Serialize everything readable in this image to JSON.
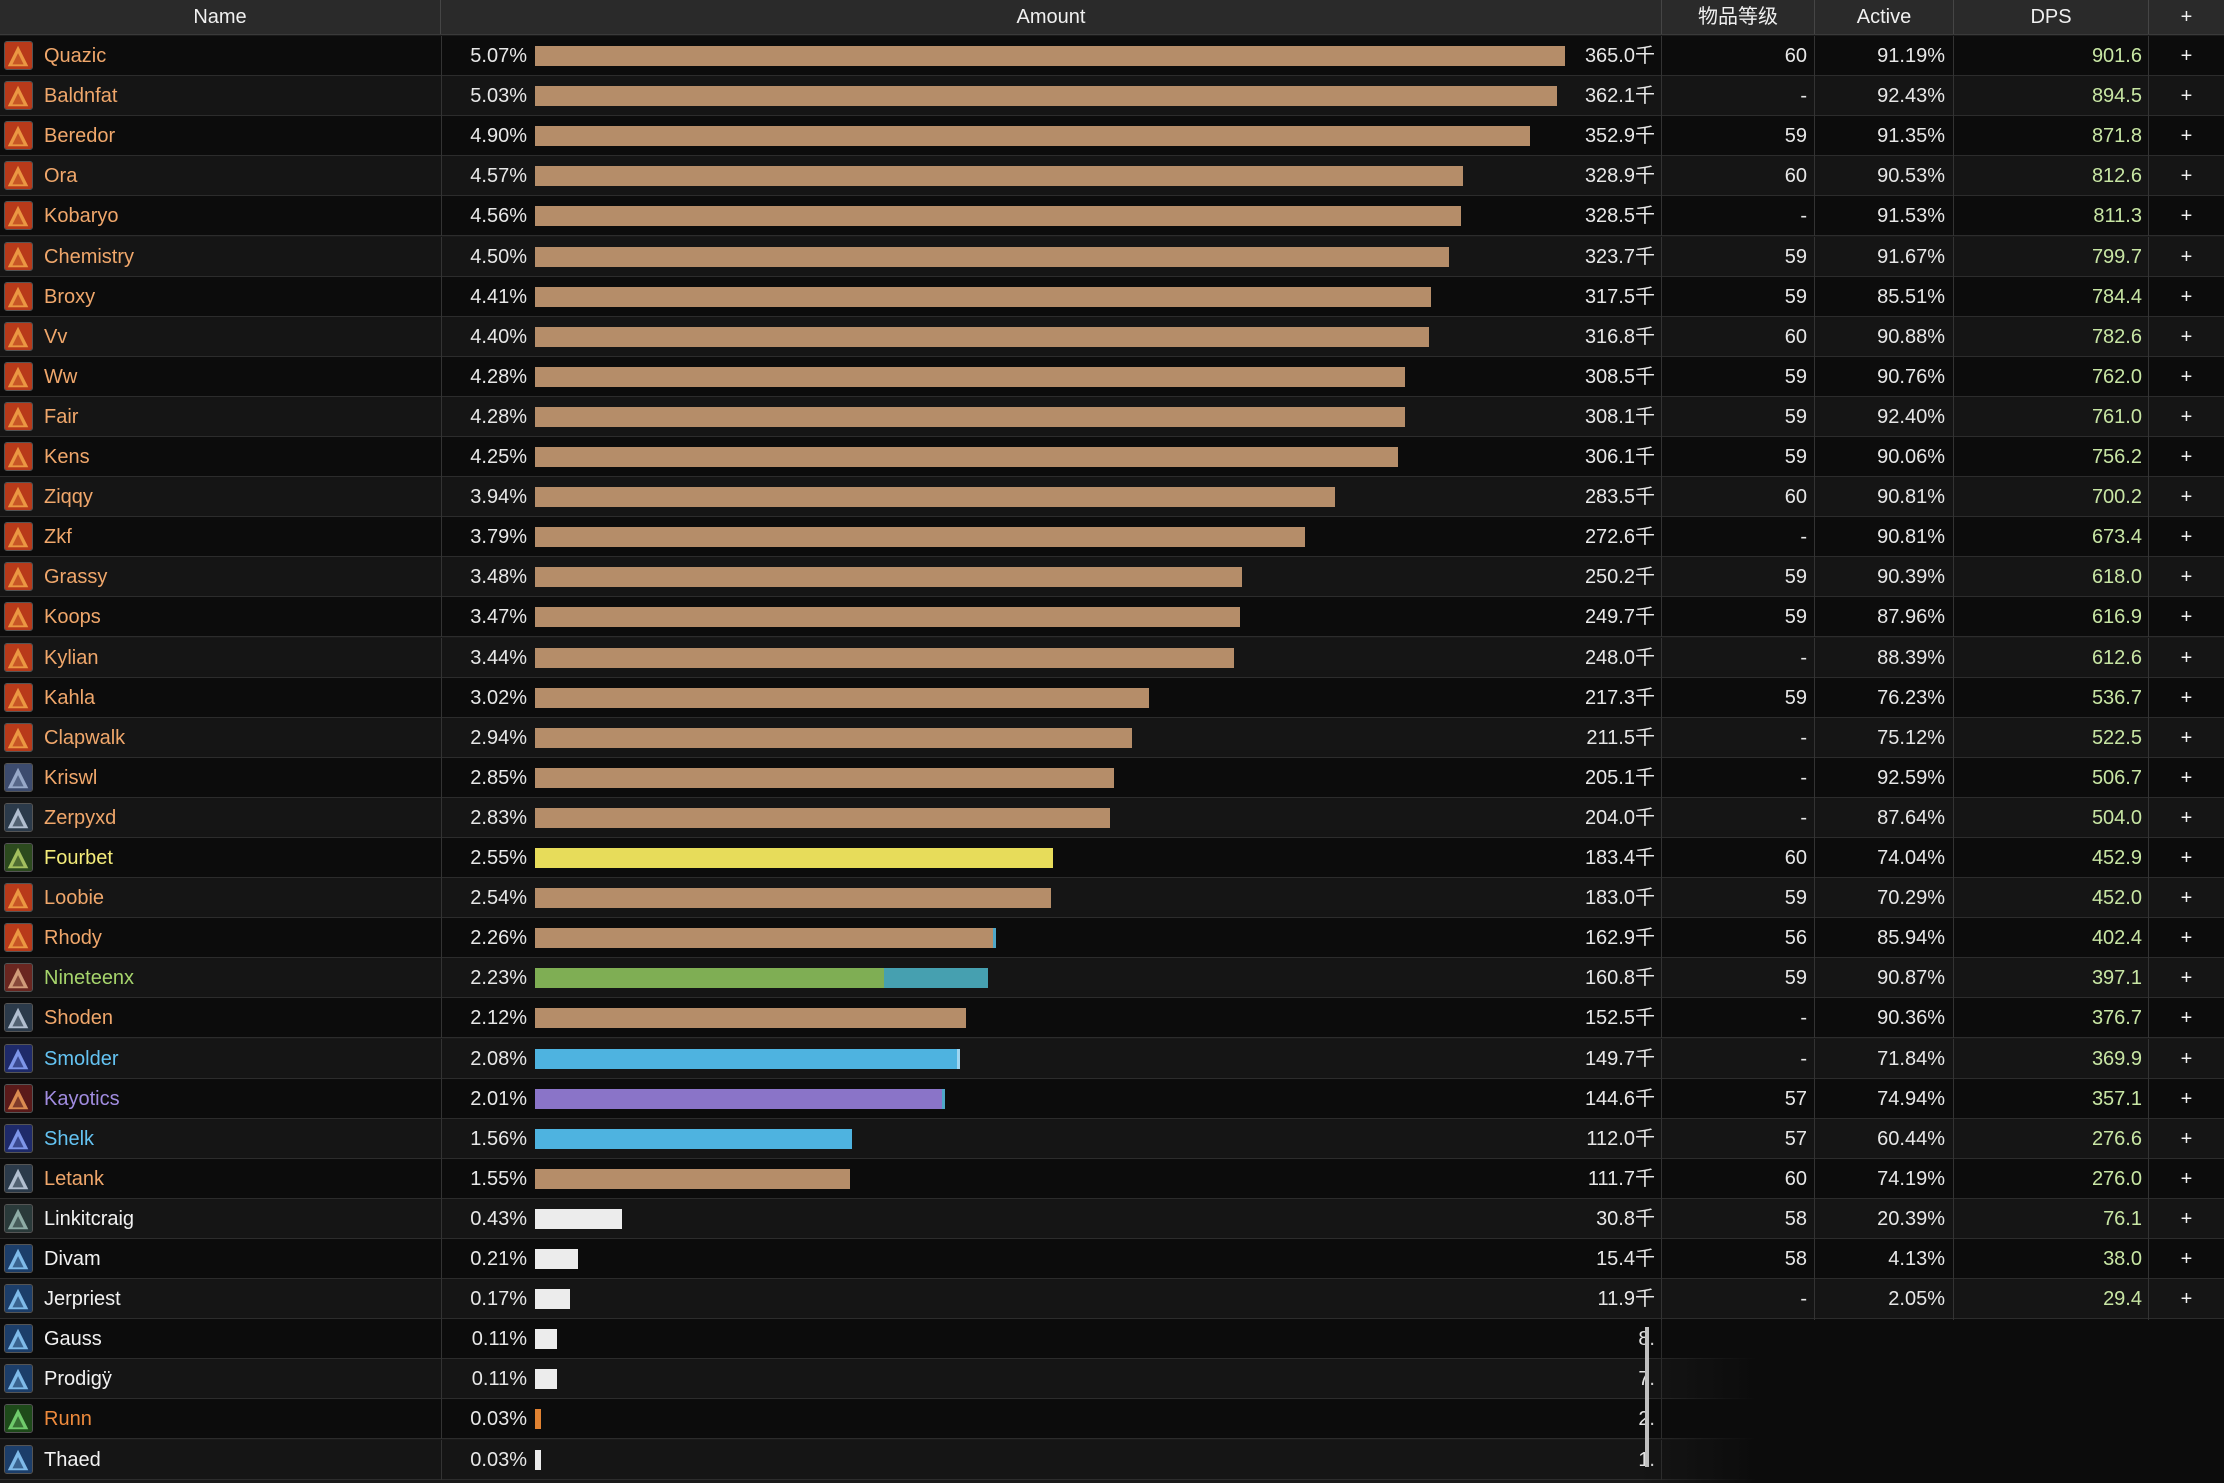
{
  "header": {
    "name": "Name",
    "amount": "Amount",
    "ilvl": "物品等级",
    "active": "Active",
    "dps": "DPS",
    "plus": "+"
  },
  "rows": [
    {
      "name": "Quazic",
      "pct": "5.07%",
      "amount": "365.0千",
      "ilvl": "60",
      "active": "91.19%",
      "dps": "901.6",
      "plus": "+",
      "bar": 5.07,
      "barColor": "#b58d69",
      "nameColor": "#f0a76b",
      "icon": "fire-class-icon"
    },
    {
      "name": "Baldnfat",
      "pct": "5.03%",
      "amount": "362.1千",
      "ilvl": "-",
      "active": "92.43%",
      "dps": "894.5",
      "plus": "+",
      "bar": 5.03,
      "barColor": "#b58d69",
      "nameColor": "#f0a76b",
      "icon": "fire-class-icon"
    },
    {
      "name": "Beredor",
      "pct": "4.90%",
      "amount": "352.9千",
      "ilvl": "59",
      "active": "91.35%",
      "dps": "871.8",
      "plus": "+",
      "bar": 4.9,
      "barColor": "#b58d69",
      "nameColor": "#f0a76b",
      "icon": "fire-class-icon"
    },
    {
      "name": "Ora",
      "pct": "4.57%",
      "amount": "328.9千",
      "ilvl": "60",
      "active": "90.53%",
      "dps": "812.6",
      "plus": "+",
      "bar": 4.57,
      "barColor": "#b58d69",
      "nameColor": "#f0a76b",
      "icon": "fire-class-icon"
    },
    {
      "name": "Kobaryo",
      "pct": "4.56%",
      "amount": "328.5千",
      "ilvl": "-",
      "active": "91.53%",
      "dps": "811.3",
      "plus": "+",
      "bar": 4.56,
      "barColor": "#b58d69",
      "nameColor": "#f0a76b",
      "icon": "fire-class-icon"
    },
    {
      "name": "Chemistry",
      "pct": "4.50%",
      "amount": "323.7千",
      "ilvl": "59",
      "active": "91.67%",
      "dps": "799.7",
      "plus": "+",
      "bar": 4.5,
      "barColor": "#b58d69",
      "nameColor": "#f0a76b",
      "icon": "fire-class-icon"
    },
    {
      "name": "Broxy",
      "pct": "4.41%",
      "amount": "317.5千",
      "ilvl": "59",
      "active": "85.51%",
      "dps": "784.4",
      "plus": "+",
      "bar": 4.41,
      "barColor": "#b58d69",
      "nameColor": "#f0a76b",
      "icon": "fire-class-icon"
    },
    {
      "name": "Vv",
      "pct": "4.40%",
      "amount": "316.8千",
      "ilvl": "60",
      "active": "90.88%",
      "dps": "782.6",
      "plus": "+",
      "bar": 4.4,
      "barColor": "#b58d69",
      "nameColor": "#f0a76b",
      "icon": "fire-class-icon"
    },
    {
      "name": "Ww",
      "pct": "4.28%",
      "amount": "308.5千",
      "ilvl": "59",
      "active": "90.76%",
      "dps": "762.0",
      "plus": "+",
      "bar": 4.28,
      "barColor": "#b58d69",
      "nameColor": "#f0a76b",
      "icon": "fire-class-icon"
    },
    {
      "name": "Fair",
      "pct": "4.28%",
      "amount": "308.1千",
      "ilvl": "59",
      "active": "92.40%",
      "dps": "761.0",
      "plus": "+",
      "bar": 4.28,
      "barColor": "#b58d69",
      "nameColor": "#f0a76b",
      "icon": "fire-class-icon"
    },
    {
      "name": "Kens",
      "pct": "4.25%",
      "amount": "306.1千",
      "ilvl": "59",
      "active": "90.06%",
      "dps": "756.2",
      "plus": "+",
      "bar": 4.25,
      "barColor": "#b58d69",
      "nameColor": "#f0a76b",
      "icon": "fire-class-icon"
    },
    {
      "name": "Ziqqy",
      "pct": "3.94%",
      "amount": "283.5千",
      "ilvl": "60",
      "active": "90.81%",
      "dps": "700.2",
      "plus": "+",
      "bar": 3.94,
      "barColor": "#b58d69",
      "nameColor": "#f0a76b",
      "icon": "fire-class-icon"
    },
    {
      "name": "Zkf",
      "pct": "3.79%",
      "amount": "272.6千",
      "ilvl": "-",
      "active": "90.81%",
      "dps": "673.4",
      "plus": "+",
      "bar": 3.79,
      "barColor": "#b58d69",
      "nameColor": "#f0a76b",
      "icon": "fire-class-icon"
    },
    {
      "name": "Grassy",
      "pct": "3.48%",
      "amount": "250.2千",
      "ilvl": "59",
      "active": "90.39%",
      "dps": "618.0",
      "plus": "+",
      "bar": 3.48,
      "barColor": "#b58d69",
      "nameColor": "#f0a76b",
      "icon": "fire-class-icon"
    },
    {
      "name": "Koops",
      "pct": "3.47%",
      "amount": "249.7千",
      "ilvl": "59",
      "active": "87.96%",
      "dps": "616.9",
      "plus": "+",
      "bar": 3.47,
      "barColor": "#b58d69",
      "nameColor": "#f0a76b",
      "icon": "fire-class-icon"
    },
    {
      "name": "Kylian",
      "pct": "3.44%",
      "amount": "248.0千",
      "ilvl": "-",
      "active": "88.39%",
      "dps": "612.6",
      "plus": "+",
      "bar": 3.44,
      "barColor": "#b58d69",
      "nameColor": "#f0a76b",
      "icon": "fire-class-icon"
    },
    {
      "name": "Kahla",
      "pct": "3.02%",
      "amount": "217.3千",
      "ilvl": "59",
      "active": "76.23%",
      "dps": "536.7",
      "plus": "+",
      "bar": 3.02,
      "barColor": "#b58d69",
      "nameColor": "#f0a76b",
      "icon": "fire-class-icon"
    },
    {
      "name": "Clapwalk",
      "pct": "2.94%",
      "amount": "211.5千",
      "ilvl": "-",
      "active": "75.12%",
      "dps": "522.5",
      "plus": "+",
      "bar": 2.94,
      "barColor": "#b58d69",
      "nameColor": "#f0a76b",
      "icon": "fire-class-icon"
    },
    {
      "name": "Kriswl",
      "pct": "2.85%",
      "amount": "205.1千",
      "ilvl": "-",
      "active": "92.59%",
      "dps": "506.7",
      "plus": "+",
      "bar": 2.85,
      "barColor": "#b58d69",
      "nameColor": "#f0a76b",
      "icon": "shield-class-icon"
    },
    {
      "name": "Zerpyxd",
      "pct": "2.83%",
      "amount": "204.0千",
      "ilvl": "-",
      "active": "87.64%",
      "dps": "504.0",
      "plus": "+",
      "bar": 2.83,
      "barColor": "#b58d69",
      "nameColor": "#f0a76b",
      "icon": "sword-class-icon"
    },
    {
      "name": "Fourbet",
      "pct": "2.55%",
      "amount": "183.4千",
      "ilvl": "60",
      "active": "74.04%",
      "dps": "452.9",
      "plus": "+",
      "bar": 2.55,
      "barColor": "#e7dc5a",
      "nameColor": "#f4ec7a",
      "icon": "crossed-daggers-icon"
    },
    {
      "name": "Loobie",
      "pct": "2.54%",
      "amount": "183.0千",
      "ilvl": "59",
      "active": "70.29%",
      "dps": "452.0",
      "plus": "+",
      "bar": 2.54,
      "barColor": "#b58d69",
      "nameColor": "#f0a76b",
      "icon": "fire-class-icon"
    },
    {
      "name": "Rhody",
      "pct": "2.26%",
      "amount": "162.9千",
      "ilvl": "56",
      "active": "85.94%",
      "dps": "402.4",
      "plus": "+",
      "bar": 2.26,
      "barColor": "#b58d69",
      "nameColor": "#f0a76b",
      "icon": "fire-class-icon",
      "barEnd": "#4ea7c8"
    },
    {
      "name": "Nineteenx",
      "pct": "2.23%",
      "amount": "160.8千",
      "ilvl": "59",
      "active": "90.87%",
      "dps": "397.1",
      "plus": "+",
      "bar": 2.23,
      "barColor": "#7fae54",
      "nameColor": "#a6d46c",
      "icon": "beast-class-icon",
      "split": {
        "first": 0.77,
        "second": "#46a0b0"
      }
    },
    {
      "name": "Shoden",
      "pct": "2.12%",
      "amount": "152.5千",
      "ilvl": "-",
      "active": "90.36%",
      "dps": "376.7",
      "plus": "+",
      "bar": 2.12,
      "barColor": "#b58d69",
      "nameColor": "#f0a76b",
      "icon": "sword-class-icon"
    },
    {
      "name": "Smolder",
      "pct": "2.08%",
      "amount": "149.7千",
      "ilvl": "-",
      "active": "71.84%",
      "dps": "369.9",
      "plus": "+",
      "bar": 2.08,
      "barColor": "#4eb3e0",
      "nameColor": "#64c3f2",
      "icon": "frost-class-icon",
      "barEnd": "#9fd5f0"
    },
    {
      "name": "Kayotics",
      "pct": "2.01%",
      "amount": "144.6千",
      "ilvl": "57",
      "active": "74.94%",
      "dps": "357.1",
      "plus": "+",
      "bar": 2.01,
      "barColor": "#8a74c8",
      "nameColor": "#a18ce0",
      "icon": "claw-class-icon",
      "barEnd": "#4ea7c8"
    },
    {
      "name": "Shelk",
      "pct": "1.56%",
      "amount": "112.0千",
      "ilvl": "57",
      "active": "60.44%",
      "dps": "276.6",
      "plus": "+",
      "bar": 1.56,
      "barColor": "#4eb3e0",
      "nameColor": "#64c3f2",
      "icon": "frost-class-icon"
    },
    {
      "name": "Letank",
      "pct": "1.55%",
      "amount": "111.7千",
      "ilvl": "60",
      "active": "74.19%",
      "dps": "276.0",
      "plus": "+",
      "bar": 1.55,
      "barColor": "#b58d69",
      "nameColor": "#f0a76b",
      "icon": "sword-class-icon"
    },
    {
      "name": "Linkitcraig",
      "pct": "0.43%",
      "amount": "30.8千",
      "ilvl": "58",
      "active": "20.39%",
      "dps": "76.1",
      "plus": "+",
      "bar": 0.43,
      "barColor": "#ececec",
      "nameColor": "#f2f2f2",
      "icon": "spear-class-icon"
    },
    {
      "name": "Divam",
      "pct": "0.21%",
      "amount": "15.4千",
      "ilvl": "58",
      "active": "4.13%",
      "dps": "38.0",
      "plus": "+",
      "bar": 0.21,
      "barColor": "#ececec",
      "nameColor": "#f2f2f2",
      "icon": "holy-class-icon"
    },
    {
      "name": "Jerpriest",
      "pct": "0.17%",
      "amount": "11.9千",
      "ilvl": "-",
      "active": "2.05%",
      "dps": "29.4",
      "plus": "+",
      "bar": 0.17,
      "barColor": "#ececec",
      "nameColor": "#f2f2f2",
      "icon": "holy-class-icon"
    },
    {
      "name": "Gauss",
      "pct": "0.11%",
      "amount": "8.",
      "ilvl": "",
      "active": "",
      "dps": "",
      "plus": "",
      "bar": 0.11,
      "barColor": "#ececec",
      "nameColor": "#f2f2f2",
      "icon": "holy-class-icon"
    },
    {
      "name": "Prodigÿ",
      "pct": "0.11%",
      "amount": "7.",
      "ilvl": "",
      "active": "",
      "dps": "",
      "plus": "",
      "bar": 0.11,
      "barColor": "#ececec",
      "nameColor": "#f2f2f2",
      "icon": "holy-class-icon"
    },
    {
      "name": "Runn",
      "pct": "0.03%",
      "amount": "2.",
      "ilvl": "",
      "active": "",
      "dps": "",
      "plus": "",
      "bar": 0.03,
      "barColor": "#e08232",
      "nameColor": "#ee8a3c",
      "icon": "nature-class-icon"
    },
    {
      "name": "Thaed",
      "pct": "0.03%",
      "amount": "1.",
      "ilvl": "",
      "active": "",
      "dps": "",
      "plus": "",
      "bar": 0.03,
      "barColor": "#ececec",
      "nameColor": "#f2f2f2",
      "icon": "holy-class-icon"
    }
  ],
  "colors": {
    "fire-class-icon": [
      "#b83a1a",
      "#f3a84a"
    ],
    "shield-class-icon": [
      "#3c4b6e",
      "#a7b8d8"
    ],
    "sword-class-icon": [
      "#2b3a4a",
      "#c9d6e6"
    ],
    "crossed-daggers-icon": [
      "#2c4a1e",
      "#b8d36a"
    ],
    "beast-class-icon": [
      "#6a2620",
      "#e2b08a"
    ],
    "frost-class-icon": [
      "#1e2a6a",
      "#8ea8ff"
    ],
    "claw-class-icon": [
      "#5a1a1a",
      "#f2a05a"
    ],
    "spear-class-icon": [
      "#2a3a3a",
      "#9fc0b8"
    ],
    "holy-class-icon": [
      "#1c3e6a",
      "#8fd0ff"
    ],
    "nature-class-icon": [
      "#1e4a1a",
      "#7ee07a"
    ]
  }
}
